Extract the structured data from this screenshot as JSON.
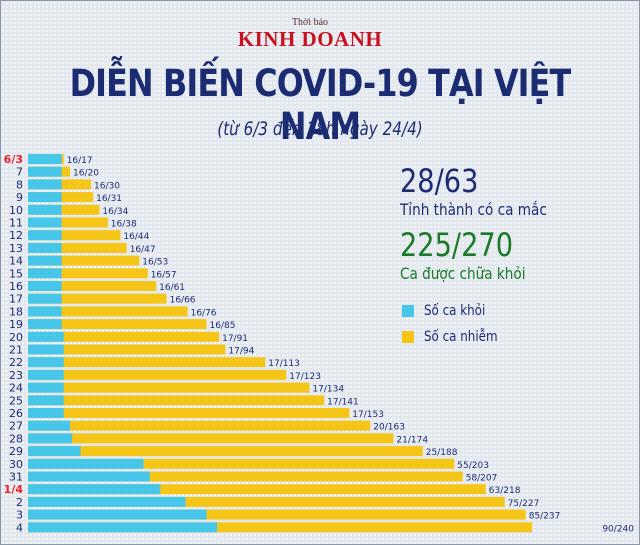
{
  "brand": {
    "small": "Thời báo",
    "main": "KINH DOANH"
  },
  "colors": {
    "recovered": "#46c6e8",
    "infected": "#f5c518",
    "title": "#1c2c72",
    "highlight": "#e8202a",
    "green": "#1a7a2a"
  },
  "stats": [
    {
      "value": "28/63",
      "label": "Tỉnh thành có ca mắc"
    },
    {
      "value": "225/270",
      "label": "Ca được chữa khỏi"
    }
  ],
  "chart_data": {
    "type": "bar",
    "orientation": "horizontal",
    "stacked": "overlay",
    "title": "DIỄN BIẾN COVID-19 TẠI VIỆT NAM",
    "subtitle": "(từ 6/3 đến 18h ngày 24/4)",
    "legend": [
      "Số ca khỏi",
      "Số ca nhiễm"
    ],
    "legend_position": "right",
    "grid": false,
    "categories": [
      "6/3",
      "7",
      "8",
      "9",
      "10",
      "11",
      "12",
      "13",
      "14",
      "15",
      "16",
      "17",
      "18",
      "19",
      "20",
      "21",
      "22",
      "23",
      "24",
      "25",
      "26",
      "27",
      "28",
      "29",
      "30",
      "31",
      "1/4",
      "2",
      "3",
      "4"
    ],
    "highlight_categories": [
      "6/3",
      "1/4"
    ],
    "series": [
      {
        "name": "Số ca khỏi",
        "values": [
          16,
          16,
          16,
          16,
          16,
          16,
          16,
          16,
          16,
          16,
          16,
          16,
          16,
          16,
          17,
          17,
          17,
          17,
          17,
          17,
          17,
          20,
          21,
          25,
          55,
          58,
          63,
          75,
          85,
          90
        ]
      },
      {
        "name": "Số ca nhiễm",
        "values": [
          17,
          20,
          30,
          31,
          34,
          38,
          44,
          47,
          53,
          57,
          61,
          66,
          76,
          85,
          91,
          94,
          113,
          123,
          134,
          141,
          153,
          163,
          174,
          188,
          203,
          207,
          218,
          227,
          237,
          240
        ]
      }
    ],
    "data_labels": [
      "16/17",
      "16/20",
      "16/30",
      "16/31",
      "16/34",
      "16/38",
      "16/44",
      "16/47",
      "16/53",
      "16/57",
      "16/61",
      "16/66",
      "16/76",
      "16/85",
      "17/91",
      "17/94",
      "17/113",
      "17/123",
      "17/134",
      "17/141",
      "17/153",
      "20/163",
      "21/174",
      "25/188",
      "55/203",
      "58/207",
      "63/218",
      "75/227",
      "85/237",
      "90/240"
    ],
    "xlim": [
      0,
      240
    ]
  }
}
